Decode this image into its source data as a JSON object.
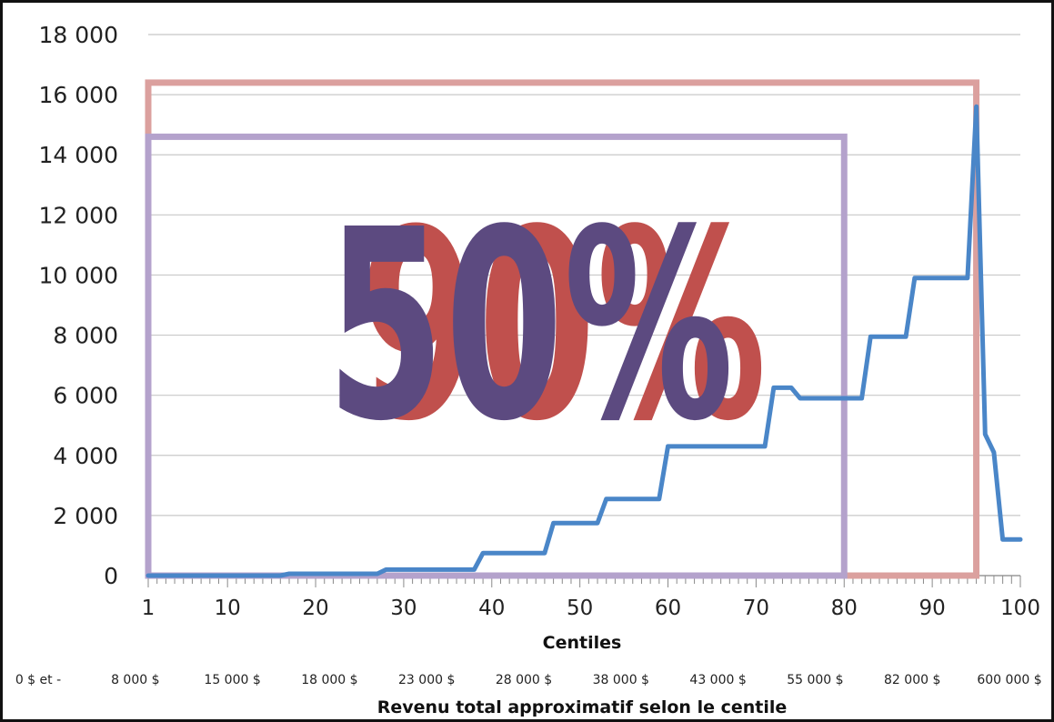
{
  "chart_data": {
    "type": "line",
    "xlabel": "Centiles",
    "secondary_xlabel": "Revenu total approximatif selon le centile",
    "ylabel": "",
    "xlim": [
      1,
      100
    ],
    "ylim": [
      0,
      18000
    ],
    "grid": true,
    "y_ticks": [
      "0",
      "2 000",
      "4 000",
      "6 000",
      "8 000",
      "10 000",
      "12 000",
      "14 000",
      "16 000",
      "18 000"
    ],
    "y_tick_values": [
      0,
      2000,
      4000,
      6000,
      8000,
      10000,
      12000,
      14000,
      16000,
      18000
    ],
    "x_ticks": [
      "1",
      "10",
      "20",
      "30",
      "40",
      "50",
      "60",
      "70",
      "80",
      "90",
      "100"
    ],
    "x_tick_values": [
      1,
      10,
      20,
      30,
      40,
      50,
      60,
      70,
      80,
      90,
      100
    ],
    "income_labels": [
      "0 $ et -",
      "8 000 $",
      "15 000 $",
      "18 000 $",
      "23 000 $",
      "28 000 $",
      "38 000 $",
      "43 000 $",
      "55 000 $",
      "82 000 $",
      "600 000 $"
    ],
    "series": [
      {
        "color": "#4a86c8",
        "x": [
          1,
          16,
          17,
          27,
          28,
          38,
          39,
          46,
          47,
          52,
          53,
          59,
          60,
          71,
          72,
          74,
          75,
          82,
          83,
          87,
          88,
          94,
          95,
          96,
          97,
          98,
          99,
          100
        ],
        "y": [
          0,
          0,
          60,
          60,
          200,
          200,
          750,
          750,
          1750,
          1750,
          2550,
          2550,
          4300,
          4300,
          6250,
          6250,
          5900,
          5900,
          7950,
          7950,
          9900,
          9900,
          15600,
          4700,
          4100,
          1200,
          1200,
          1200
        ]
      }
    ],
    "annotations": [
      {
        "text": "90%",
        "color": "#c0504d",
        "box_color": "#dba09e",
        "box_x": [
          1,
          95
        ],
        "box_y": [
          0,
          16400
        ]
      },
      {
        "text": "50%",
        "color": "#5c4a80",
        "box_color": "#b4a2cc",
        "box_x": [
          1,
          80
        ],
        "box_y": [
          0,
          14600
        ]
      }
    ]
  }
}
